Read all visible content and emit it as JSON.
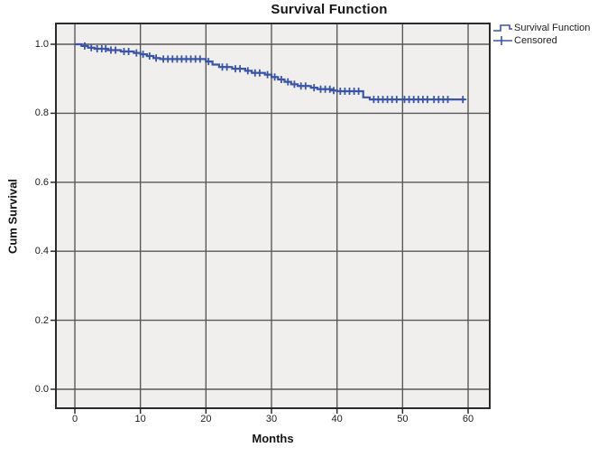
{
  "chart_data": {
    "type": "line",
    "subtype": "kaplan-meier-step",
    "title": "Survival Function",
    "xlabel": "Months",
    "ylabel": "Cum Survival",
    "legend_position": "top-right-outside",
    "grid": true,
    "xlim": [
      -2.9,
      63.3
    ],
    "ylim": [
      -0.055,
      1.06
    ],
    "xticks": [
      0,
      10,
      20,
      30,
      40,
      50,
      60
    ],
    "ytick_labels": [
      "0.0",
      "0.2",
      "0.4",
      "0.6",
      "0.8",
      "1.0"
    ],
    "ytick_values": [
      0.0,
      0.2,
      0.4,
      0.6,
      0.8,
      1.0
    ],
    "legend": [
      {
        "label": "Survival Function",
        "marker": "step-line"
      },
      {
        "label": "Censored",
        "marker": "plus"
      }
    ],
    "series": [
      {
        "name": "Survival Function",
        "step_points": [
          [
            0,
            1.0
          ],
          [
            1,
            0.995
          ],
          [
            2,
            0.99
          ],
          [
            3,
            0.987
          ],
          [
            5,
            0.983
          ],
          [
            7,
            0.979
          ],
          [
            9,
            0.975
          ],
          [
            10,
            0.971
          ],
          [
            11,
            0.966
          ],
          [
            12,
            0.96
          ],
          [
            13,
            0.957
          ],
          [
            20,
            0.95
          ],
          [
            21,
            0.941
          ],
          [
            22,
            0.934
          ],
          [
            24,
            0.929
          ],
          [
            26,
            0.923
          ],
          [
            27,
            0.917
          ],
          [
            29,
            0.912
          ],
          [
            30,
            0.905
          ],
          [
            31,
            0.898
          ],
          [
            32,
            0.891
          ],
          [
            33,
            0.884
          ],
          [
            34,
            0.879
          ],
          [
            36,
            0.874
          ],
          [
            37,
            0.87
          ],
          [
            39,
            0.866
          ],
          [
            40,
            0.864
          ],
          [
            44,
            0.846
          ],
          [
            45,
            0.84
          ],
          [
            59.5,
            0.84
          ]
        ]
      }
    ],
    "censored_points": [
      [
        1.5,
        0.995
      ],
      [
        2.5,
        0.99
      ],
      [
        3.4,
        0.987
      ],
      [
        4.1,
        0.987
      ],
      [
        4.7,
        0.987
      ],
      [
        5.5,
        0.983
      ],
      [
        6.2,
        0.983
      ],
      [
        7.5,
        0.979
      ],
      [
        8.2,
        0.979
      ],
      [
        9.4,
        0.975
      ],
      [
        10.4,
        0.971
      ],
      [
        11.4,
        0.966
      ],
      [
        12.4,
        0.96
      ],
      [
        13.5,
        0.957
      ],
      [
        14.2,
        0.957
      ],
      [
        14.9,
        0.957
      ],
      [
        15.6,
        0.957
      ],
      [
        16.3,
        0.957
      ],
      [
        17.0,
        0.957
      ],
      [
        17.7,
        0.957
      ],
      [
        18.4,
        0.957
      ],
      [
        19.1,
        0.957
      ],
      [
        20.4,
        0.95
      ],
      [
        22.5,
        0.934
      ],
      [
        23.2,
        0.934
      ],
      [
        24.5,
        0.929
      ],
      [
        25.2,
        0.929
      ],
      [
        26.4,
        0.923
      ],
      [
        27.5,
        0.917
      ],
      [
        28.2,
        0.917
      ],
      [
        29.4,
        0.912
      ],
      [
        30.5,
        0.905
      ],
      [
        31.5,
        0.898
      ],
      [
        32.5,
        0.891
      ],
      [
        33.5,
        0.884
      ],
      [
        34.5,
        0.879
      ],
      [
        35.2,
        0.879
      ],
      [
        36.5,
        0.874
      ],
      [
        37.5,
        0.87
      ],
      [
        38.2,
        0.87
      ],
      [
        38.9,
        0.87
      ],
      [
        39.5,
        0.866
      ],
      [
        40.5,
        0.864
      ],
      [
        41.2,
        0.864
      ],
      [
        41.9,
        0.864
      ],
      [
        42.6,
        0.864
      ],
      [
        43.3,
        0.864
      ],
      [
        45.6,
        0.84
      ],
      [
        46.3,
        0.84
      ],
      [
        47.0,
        0.84
      ],
      [
        47.7,
        0.84
      ],
      [
        48.4,
        0.84
      ],
      [
        49.1,
        0.84
      ],
      [
        50.3,
        0.84
      ],
      [
        51.0,
        0.84
      ],
      [
        51.7,
        0.84
      ],
      [
        52.4,
        0.84
      ],
      [
        53.1,
        0.84
      ],
      [
        53.8,
        0.84
      ],
      [
        54.8,
        0.84
      ],
      [
        55.5,
        0.84
      ],
      [
        56.2,
        0.84
      ],
      [
        56.9,
        0.84
      ],
      [
        59.2,
        0.84
      ]
    ],
    "colors": {
      "line": "#3A55A8",
      "panel_bg": "#F0EFED",
      "grid": "#595959",
      "border": "#2B2B2B",
      "text": "#1C1C1C"
    }
  }
}
